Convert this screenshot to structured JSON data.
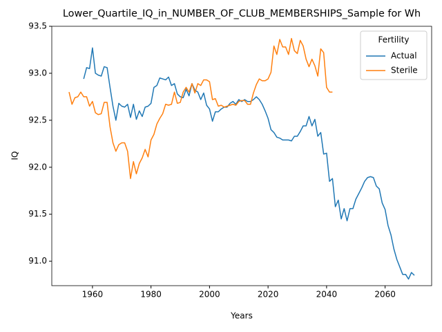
{
  "chart_data": {
    "type": "line",
    "title": "Lower_Quartile_IQ_in_NUMBER_OF_CLUB_MEMBERSHIPS_Sample for Wh",
    "xlabel": "Years",
    "ylabel": "IQ",
    "legend_title": "Fertility",
    "legend": "upper right",
    "xlim": [
      1946.1,
      2075.9
    ],
    "ylim": [
      90.74,
      93.5
    ],
    "xticks": [
      1960,
      1980,
      2000,
      2020,
      2040,
      2060
    ],
    "yticks": [
      {
        "value": 91,
        "label": "91.0"
      },
      91.5,
      {
        "value": 92,
        "label": "92.0"
      },
      92.5,
      {
        "value": 93,
        "label": "93.0"
      },
      93.5
    ],
    "series": [
      {
        "name": "Actual",
        "color": "#1f77b4",
        "x": [
          1957,
          1958,
          1959,
          1960,
          1961,
          1962,
          1963,
          1964,
          1965,
          1966,
          1967,
          1968,
          1969,
          1970,
          1971,
          1972,
          1973,
          1974,
          1975,
          1976,
          1977,
          1978,
          1979,
          1980,
          1981,
          1982,
          1983,
          1984,
          1985,
          1986,
          1987,
          1988,
          1989,
          1990,
          1991,
          1992,
          1993,
          1994,
          1995,
          1996,
          1997,
          1998,
          1999,
          2000,
          2001,
          2002,
          2003,
          2004,
          2005,
          2006,
          2007,
          2008,
          2009,
          2010,
          2011,
          2012,
          2013,
          2014,
          2015,
          2016,
          2017,
          2018,
          2019,
          2020,
          2021,
          2022,
          2023,
          2024,
          2025,
          2026,
          2027,
          2028,
          2029,
          2030,
          2031,
          2032,
          2033,
          2034,
          2035,
          2036,
          2037,
          2038,
          2039,
          2040,
          2041,
          2042,
          2043,
          2044,
          2045,
          2046,
          2047,
          2048,
          2049,
          2050,
          2051,
          2052,
          2053,
          2054,
          2055,
          2056,
          2057,
          2058,
          2059,
          2060,
          2061,
          2062,
          2063,
          2064,
          2065,
          2066,
          2067,
          2068,
          2069,
          2070
        ],
        "values": [
          92.94,
          93.06,
          93.05,
          93.27,
          93.0,
          92.98,
          92.97,
          93.07,
          93.06,
          92.85,
          92.65,
          92.5,
          92.68,
          92.65,
          92.64,
          92.67,
          92.53,
          92.67,
          92.51,
          92.6,
          92.54,
          92.64,
          92.65,
          92.68,
          92.85,
          92.87,
          92.95,
          92.94,
          92.93,
          92.96,
          92.87,
          92.89,
          92.78,
          92.75,
          92.74,
          92.83,
          92.76,
          92.89,
          92.82,
          92.8,
          92.72,
          92.79,
          92.66,
          92.62,
          92.49,
          92.59,
          92.59,
          92.62,
          92.64,
          92.64,
          92.68,
          92.7,
          92.67,
          92.72,
          92.7,
          92.72,
          92.7,
          92.7,
          92.72,
          92.75,
          92.72,
          92.67,
          92.6,
          92.52,
          92.4,
          92.37,
          92.32,
          92.31,
          92.29,
          92.29,
          92.29,
          92.28,
          92.33,
          92.33,
          92.38,
          92.44,
          92.44,
          92.54,
          92.44,
          92.51,
          92.33,
          92.37,
          92.14,
          92.15,
          91.85,
          91.88,
          91.58,
          91.65,
          91.45,
          91.56,
          91.43,
          91.56,
          91.56,
          91.66,
          91.72,
          91.78,
          91.85,
          91.89,
          91.9,
          91.89,
          91.8,
          91.77,
          91.62,
          91.55,
          91.38,
          91.28,
          91.13,
          91.02,
          90.94,
          90.86,
          90.86,
          90.81,
          90.88,
          90.85
        ]
      },
      {
        "name": "Sterile",
        "color": "#ff7f0e",
        "x": [
          1952,
          1953,
          1954,
          1955,
          1956,
          1957,
          1958,
          1959,
          1960,
          1961,
          1962,
          1963,
          1964,
          1965,
          1966,
          1967,
          1968,
          1969,
          1970,
          1971,
          1972,
          1973,
          1974,
          1975,
          1976,
          1977,
          1978,
          1979,
          1980,
          1981,
          1982,
          1983,
          1984,
          1985,
          1986,
          1987,
          1988,
          1989,
          1990,
          1991,
          1992,
          1993,
          1994,
          1995,
          1996,
          1997,
          1998,
          1999,
          2000,
          2001,
          2002,
          2003,
          2004,
          2005,
          2006,
          2007,
          2008,
          2009,
          2010,
          2011,
          2012,
          2013,
          2014,
          2015,
          2016,
          2017,
          2018,
          2019,
          2020,
          2021,
          2022,
          2023,
          2024,
          2025,
          2026,
          2027,
          2028,
          2029,
          2030,
          2031,
          2032,
          2033,
          2034,
          2035,
          2036,
          2037,
          2038,
          2039,
          2040,
          2041,
          2042
        ],
        "values": [
          92.8,
          92.67,
          92.74,
          92.75,
          92.8,
          92.75,
          92.75,
          92.65,
          92.7,
          92.58,
          92.56,
          92.57,
          92.69,
          92.69,
          92.43,
          92.26,
          92.17,
          92.24,
          92.26,
          92.26,
          92.17,
          91.88,
          92.06,
          91.93,
          92.04,
          92.1,
          92.19,
          92.11,
          92.29,
          92.35,
          92.46,
          92.52,
          92.57,
          92.67,
          92.66,
          92.67,
          92.8,
          92.68,
          92.69,
          92.8,
          92.85,
          92.8,
          92.89,
          92.79,
          92.89,
          92.87,
          92.93,
          92.93,
          92.91,
          92.72,
          92.73,
          92.65,
          92.66,
          92.64,
          92.65,
          92.66,
          92.67,
          92.66,
          92.7,
          92.71,
          92.71,
          92.67,
          92.67,
          92.79,
          92.88,
          92.94,
          92.92,
          92.92,
          92.94,
          93.01,
          93.29,
          93.2,
          93.36,
          93.28,
          93.28,
          93.2,
          93.37,
          93.24,
          93.21,
          93.35,
          93.29,
          93.15,
          93.07,
          93.15,
          93.08,
          92.97,
          93.26,
          93.22,
          92.85,
          92.8,
          92.8
        ]
      }
    ]
  }
}
